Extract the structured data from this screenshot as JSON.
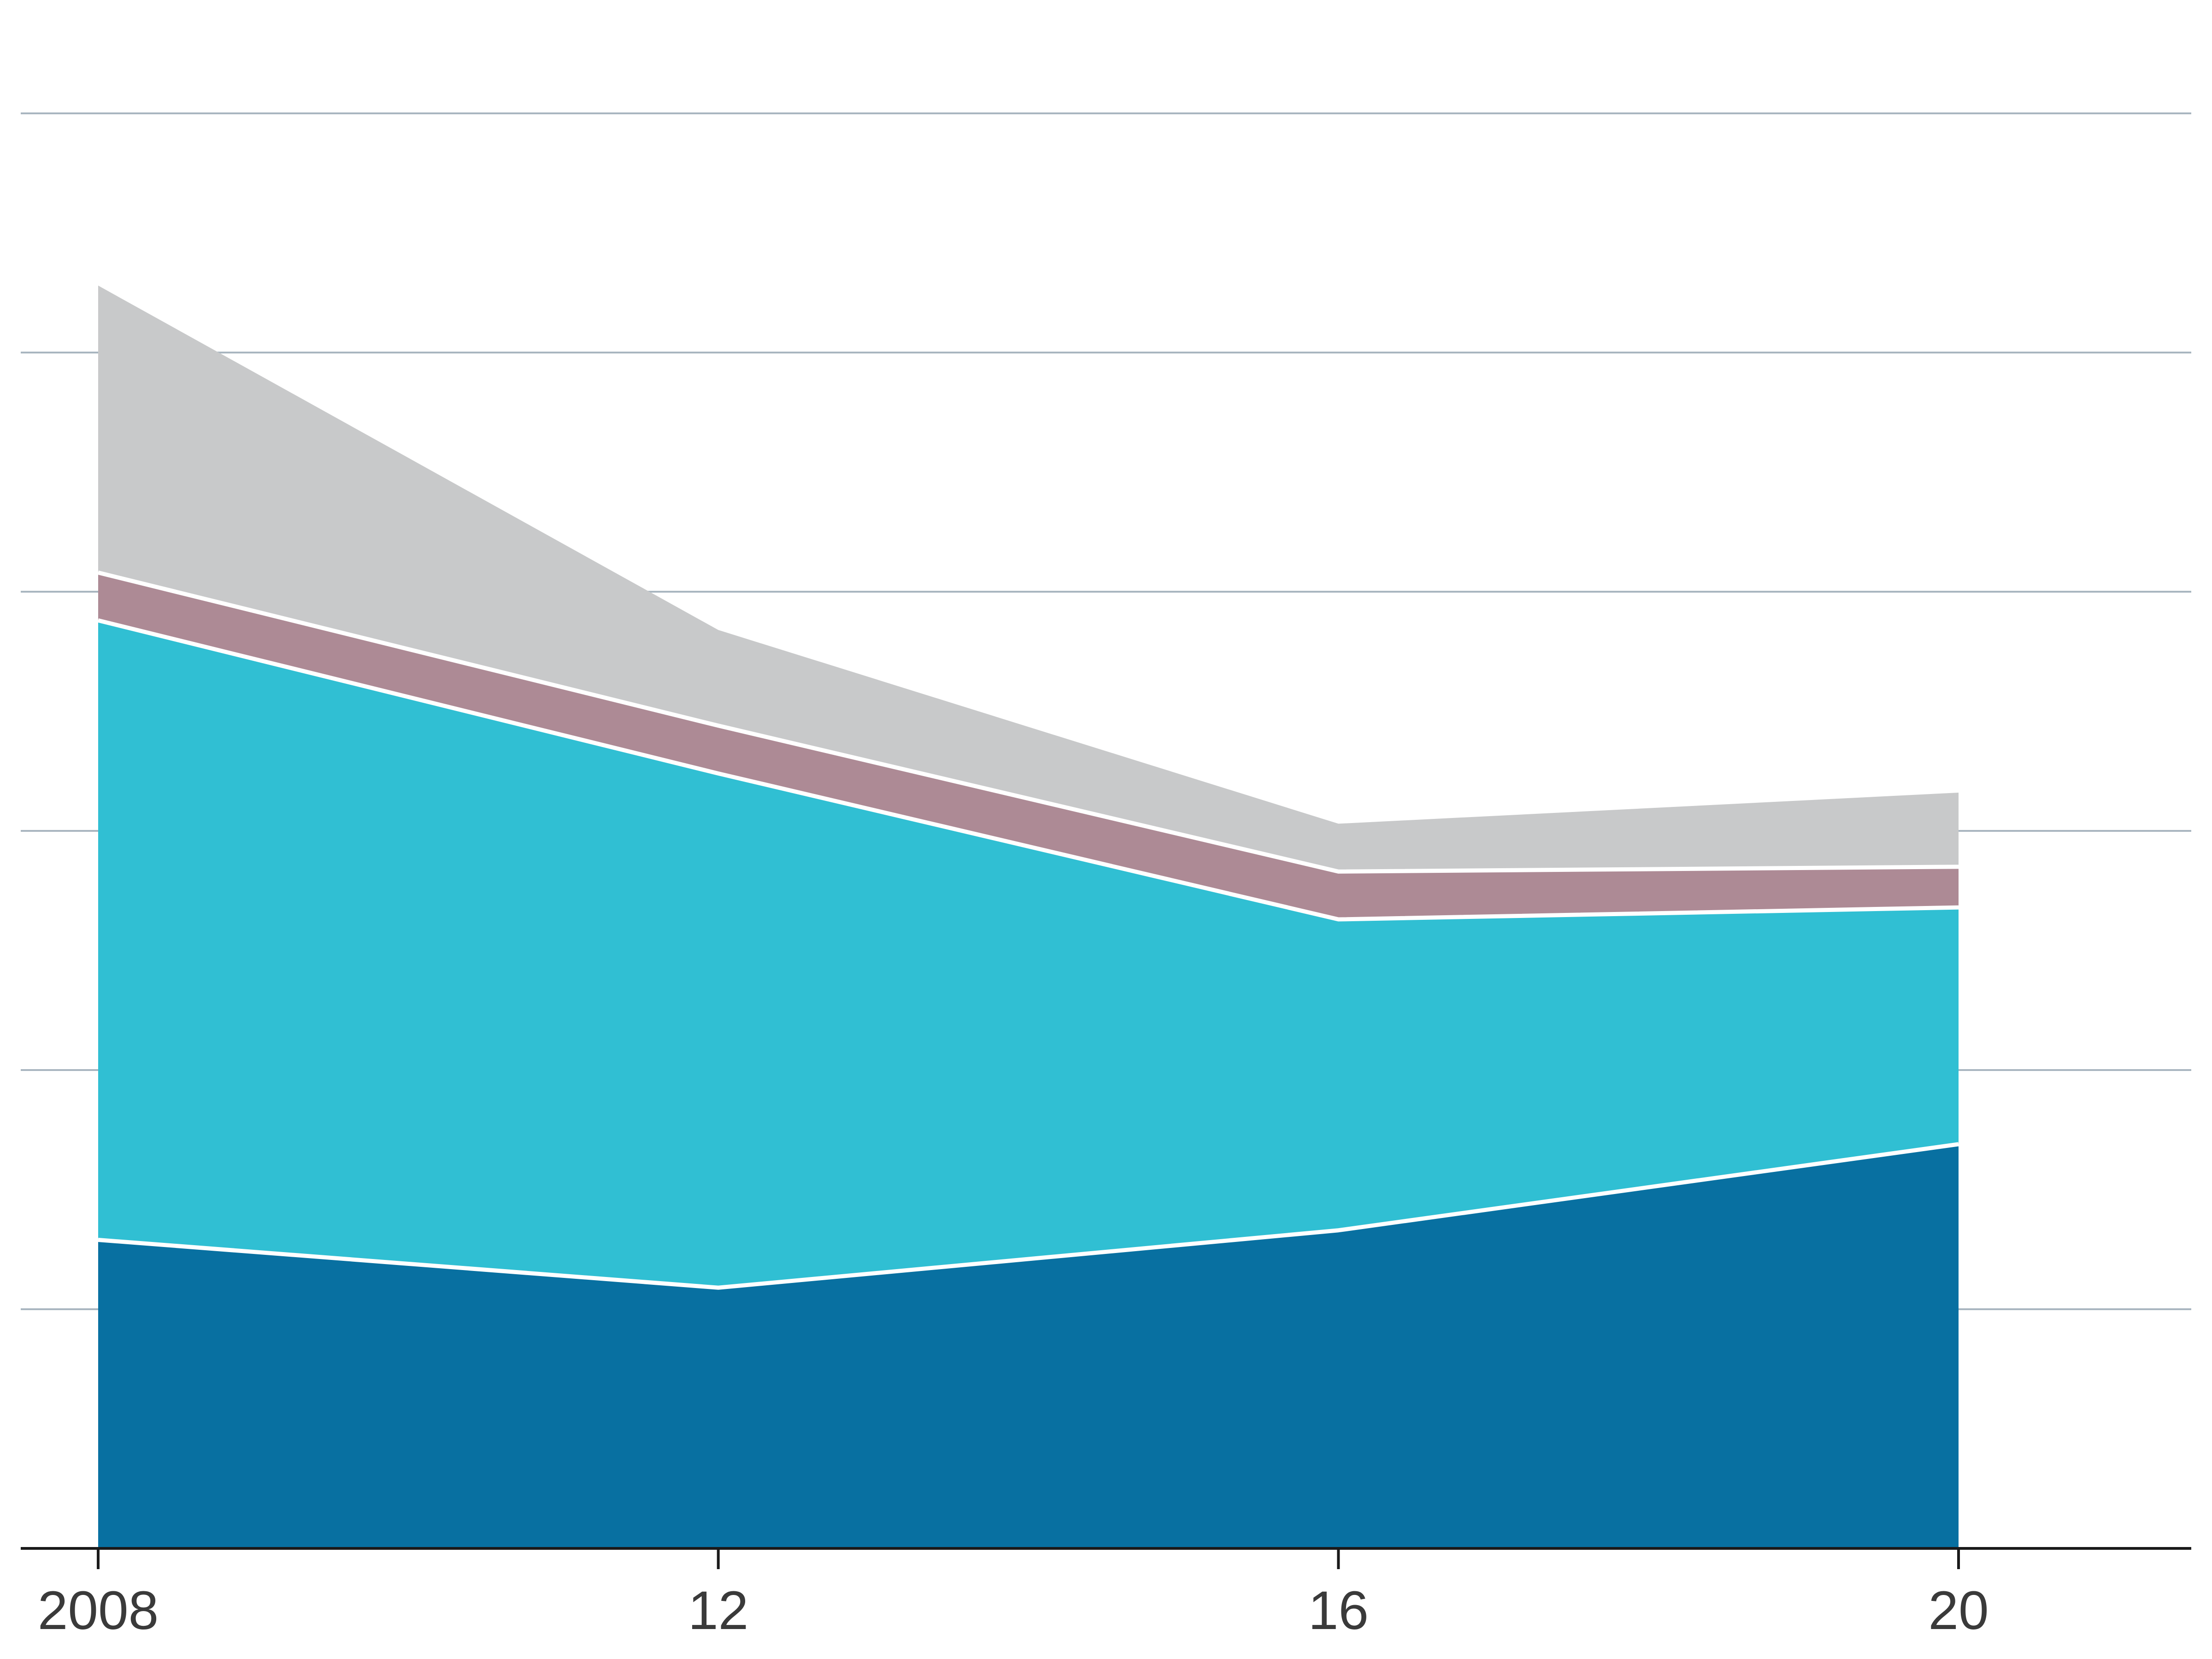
{
  "chart_data": {
    "type": "area",
    "stacked": true,
    "x": [
      2008,
      2012,
      2016,
      2020
    ],
    "x_tick_labels": [
      "2008",
      "12",
      "16",
      "20"
    ],
    "ylim": [
      0,
      6
    ],
    "y_gridlines": [
      1,
      2,
      3,
      4,
      5,
      6
    ],
    "grid": true,
    "legend": "none",
    "series": [
      {
        "values": [
          1.29,
          1.09,
          1.33,
          1.69
        ],
        "color": "#0870a1"
      },
      {
        "values": [
          2.59,
          2.15,
          1.3,
          0.99
        ],
        "color": "#30bfd3"
      },
      {
        "values": [
          0.2,
          0.2,
          0.2,
          0.17
        ],
        "color": "#ad8a95"
      },
      {
        "values": [
          1.2,
          0.4,
          0.2,
          0.31
        ],
        "color": "#c8c9ca"
      }
    ],
    "colors": {
      "gridline": "#a9b6c0",
      "axis": "#1a1a1a",
      "separator": "#ffffff",
      "tick_label": "#3a3a3a"
    }
  }
}
